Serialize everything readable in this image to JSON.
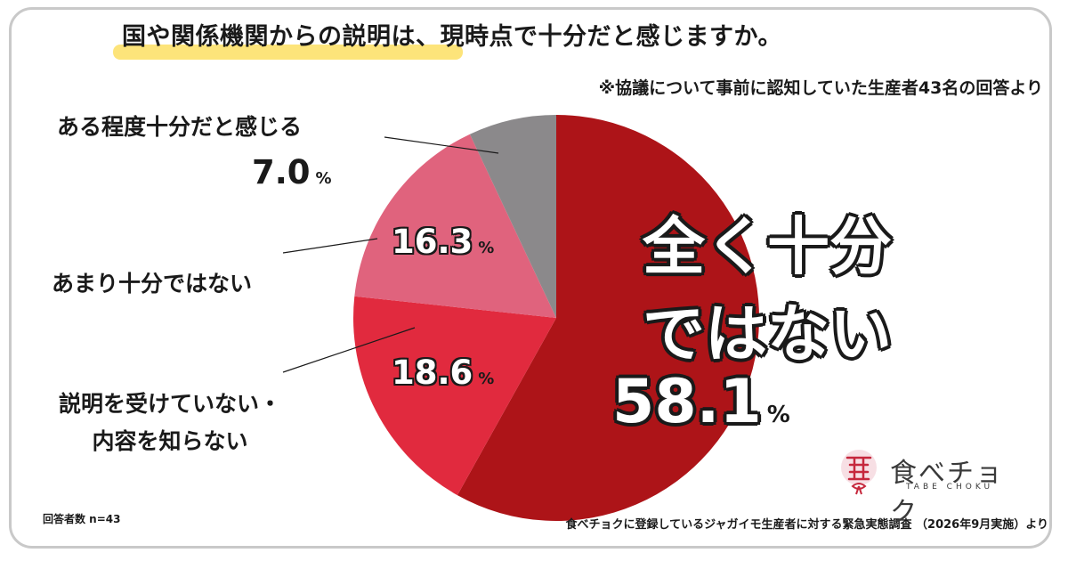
{
  "title": "国や関係機関からの説明は、現時点で十分だと感じますか。",
  "subtitle": "※協議について事前に認知していた生産者43名の回答より",
  "footer_left": "回答者数 n=43",
  "footer_right": "食べチョクに登録しているジャガイモ生産者に対する緊急実態調査 （2026年9月実施）より",
  "logo": {
    "text": "食べチョク",
    "sub": "TABE CHOKU",
    "mark_icon": "tabechoku-logo-mark"
  },
  "percent_unit": "%",
  "labels": {
    "s0_line1": "全く十分",
    "s0_line2": "ではない",
    "s0_value": "58.1",
    "s1_line1": "説明を受けていない・",
    "s1_line2": "内容を知らない",
    "s1_value": "18.6",
    "s2": "あまり十分ではない",
    "s2_value": "16.3",
    "s3": "ある程度十分だと感じる",
    "s3_value": "7.0"
  },
  "chart_data": {
    "type": "pie",
    "title": "国や関係機関からの説明は、現時点で十分だと感じますか。",
    "start": "12 o'clock",
    "direction": "clockwise",
    "slices": [
      {
        "label": "全く十分ではない",
        "value": 58.1,
        "color": "#ad1418"
      },
      {
        "label": "説明を受けていない・内容を知らない",
        "value": 18.6,
        "color": "#e12a3e"
      },
      {
        "label": "あまり十分ではない",
        "value": 16.3,
        "color": "#e0637d"
      },
      {
        "label": "ある程度十分だと感じる",
        "value": 7.0,
        "color": "#8b898b"
      }
    ]
  }
}
